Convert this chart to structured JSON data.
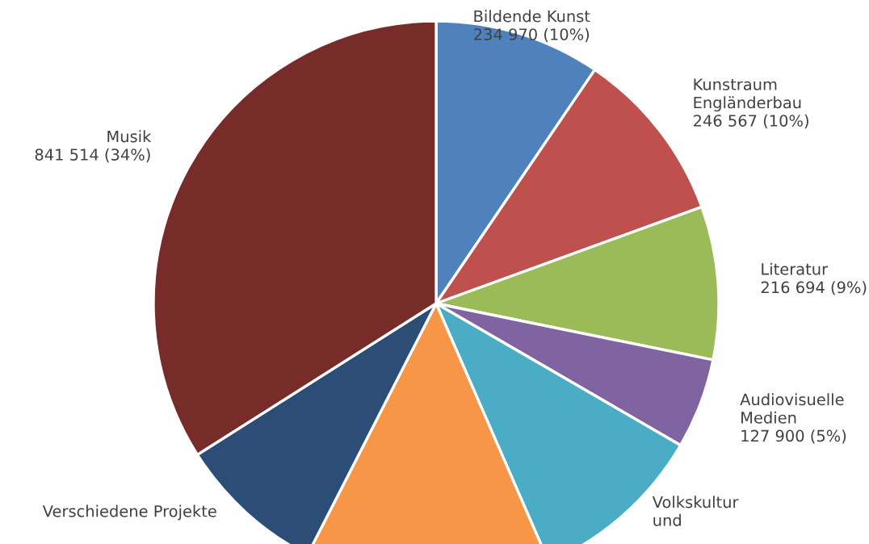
{
  "chart_data": {
    "type": "pie",
    "categories": [
      "Bildende Kunst",
      "Kunstraum\nEngländerbau",
      "Literatur",
      "Audiovisuelle\nMedien",
      "Volkskultur\nund",
      null,
      "Verschiedene Projekte",
      "Musik"
    ],
    "values": [
      234970,
      246567,
      216694,
      127900,
      250000,
      348000,
      210000,
      841514
    ],
    "colors": [
      "#4f81bd",
      "#c0504d",
      "#9bbb59",
      "#8064a2",
      "#4bacc6",
      "#f79646",
      "#2c4d75",
      "#772c2a"
    ],
    "value_labels": [
      "234 970 (10%)",
      "246 567 (10%)",
      "216 694 (9%)",
      "127 900 (5%)",
      null,
      null,
      null,
      "841 514 (34%)"
    ]
  }
}
